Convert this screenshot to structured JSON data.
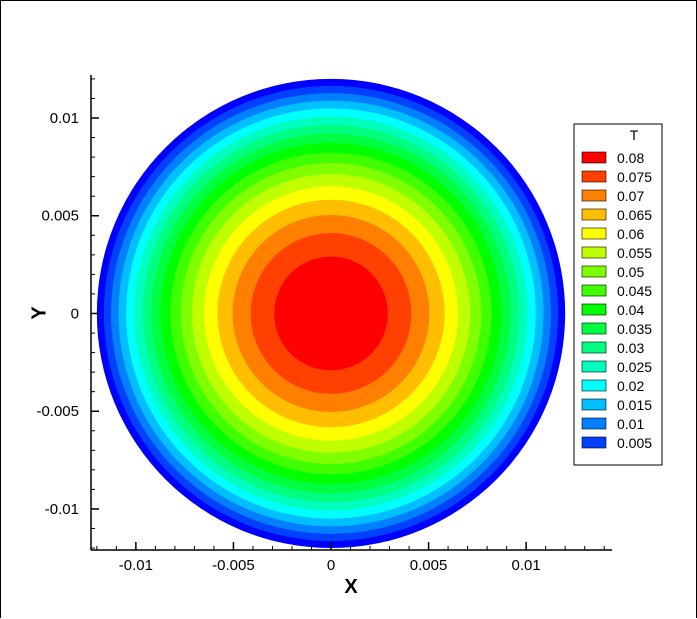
{
  "chart_data": {
    "type": "contour",
    "xlabel": "X",
    "ylabel": "Y",
    "xlim": [
      -0.0123,
      0.0144
    ],
    "ylim": [
      -0.0121,
      0.0122
    ],
    "x_ticks": [
      -0.01,
      -0.005,
      0,
      0.005,
      0.01
    ],
    "x_tick_labels": [
      "-0.01",
      "-0.005",
      "0",
      "0.005",
      "0.01"
    ],
    "y_ticks": [
      -0.01,
      -0.005,
      0,
      0.005,
      0.01
    ],
    "y_tick_labels": [
      "-0.01",
      "-0.005",
      "0",
      "0.005",
      "0.01"
    ],
    "domain": {
      "shape": "circle",
      "center": [
        0,
        0
      ],
      "radius": 0.012
    },
    "field": {
      "max_value": 0.085,
      "min_value": 0.0,
      "profile": "radial"
    },
    "legend": {
      "title": "T",
      "placement": "right",
      "levels": [
        {
          "label": "0.08",
          "value": 0.08,
          "color": "#ff0000"
        },
        {
          "label": "0.075",
          "value": 0.075,
          "color": "#ff4000"
        },
        {
          "label": "0.07",
          "value": 0.07,
          "color": "#ff8000"
        },
        {
          "label": "0.065",
          "value": 0.065,
          "color": "#ffbf00"
        },
        {
          "label": "0.06",
          "value": 0.06,
          "color": "#ffff00"
        },
        {
          "label": "0.055",
          "value": 0.055,
          "color": "#bfff00"
        },
        {
          "label": "0.05",
          "value": 0.05,
          "color": "#80ff00"
        },
        {
          "label": "0.045",
          "value": 0.045,
          "color": "#40ff00"
        },
        {
          "label": "0.04",
          "value": 0.04,
          "color": "#00ff00"
        },
        {
          "label": "0.035",
          "value": 0.035,
          "color": "#00ff40"
        },
        {
          "label": "0.03",
          "value": 0.03,
          "color": "#00ff80"
        },
        {
          "label": "0.025",
          "value": 0.025,
          "color": "#00ffbf"
        },
        {
          "label": "0.02",
          "value": 0.02,
          "color": "#00ffff"
        },
        {
          "label": "0.015",
          "value": 0.015,
          "color": "#00bfff"
        },
        {
          "label": "0.01",
          "value": 0.01,
          "color": "#0080ff"
        },
        {
          "label": "0.005",
          "value": 0.005,
          "color": "#0040ff"
        }
      ],
      "below_min_color": "#0000ff"
    }
  }
}
